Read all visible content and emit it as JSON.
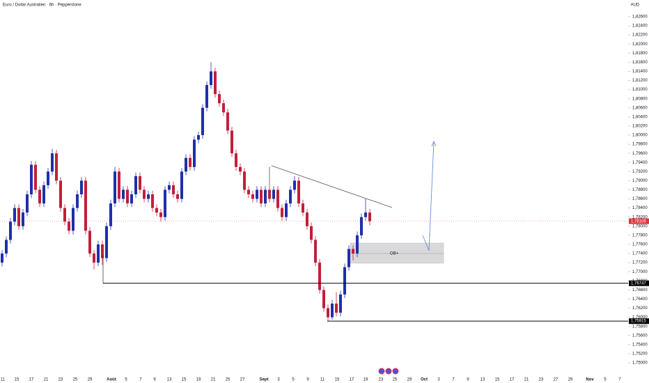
{
  "chart_data": {
    "type": "candlestick",
    "title": "Euro / Dollar Australien · 6h · Pepperstone",
    "currency": "AUD",
    "up_color": "#1f2fa8",
    "down_color": "#c21f3a",
    "ylim": [
      1.75,
      1.826
    ],
    "yticks": [
      {
        "value": 1.826,
        "label": "1,82600"
      },
      {
        "value": 1.824,
        "label": "1,82400"
      },
      {
        "value": 1.822,
        "label": "1,82200"
      },
      {
        "value": 1.82,
        "label": "1,82000"
      },
      {
        "value": 1.818,
        "label": "1,81800"
      },
      {
        "value": 1.816,
        "label": "1,81600"
      },
      {
        "value": 1.814,
        "label": "1,81400"
      },
      {
        "value": 1.812,
        "label": "1,81200"
      },
      {
        "value": 1.81,
        "label": "1,81000"
      },
      {
        "value": 1.808,
        "label": "1,80800"
      },
      {
        "value": 1.806,
        "label": "1,80600"
      },
      {
        "value": 1.804,
        "label": "1,80400"
      },
      {
        "value": 1.802,
        "label": "1,80200"
      },
      {
        "value": 1.8,
        "label": "1,80000"
      },
      {
        "value": 1.798,
        "label": "1,79800"
      },
      {
        "value": 1.796,
        "label": "1,79600"
      },
      {
        "value": 1.794,
        "label": "1,79400"
      },
      {
        "value": 1.792,
        "label": "1,79200"
      },
      {
        "value": 1.79,
        "label": "1,79000"
      },
      {
        "value": 1.788,
        "label": "1,78800"
      },
      {
        "value": 1.786,
        "label": "1,78600"
      },
      {
        "value": 1.784,
        "label": "1,78400"
      },
      {
        "value": 1.782,
        "label": "1,78200"
      },
      {
        "value": 1.78,
        "label": "1,78000"
      },
      {
        "value": 1.778,
        "label": "1,77800"
      },
      {
        "value": 1.776,
        "label": "1,77600"
      },
      {
        "value": 1.774,
        "label": "1,77400"
      },
      {
        "value": 1.772,
        "label": "1,77200"
      },
      {
        "value": 1.77,
        "label": "1,77000"
      },
      {
        "value": 1.768,
        "label": "1,76800"
      },
      {
        "value": 1.766,
        "label": "1,76600"
      },
      {
        "value": 1.764,
        "label": "1,76400"
      },
      {
        "value": 1.762,
        "label": "1,76200"
      },
      {
        "value": 1.76,
        "label": "1,76000"
      },
      {
        "value": 1.758,
        "label": "1,75800"
      },
      {
        "value": 1.756,
        "label": "1,75600"
      },
      {
        "value": 1.754,
        "label": "1,75400"
      },
      {
        "value": 1.752,
        "label": "1,75200"
      },
      {
        "value": 1.75,
        "label": "1,75000"
      }
    ],
    "x_labels": [
      "11",
      "15",
      "17",
      "21",
      "23",
      "25",
      "29",
      "Août",
      "5",
      "7",
      "9",
      "13",
      "15",
      "19",
      "21",
      "25",
      "27",
      "Sept",
      "3",
      "5",
      "9",
      "11",
      "15",
      "17",
      "19",
      "23",
      "25",
      "29",
      "Oct",
      "3",
      "7",
      "9",
      "13",
      "15",
      "17",
      "21",
      "23",
      "27",
      "29",
      "Nov",
      "5",
      "7"
    ],
    "candles": [
      [
        1.772,
        1.7748,
        1.7712,
        1.774
      ],
      [
        1.774,
        1.7778,
        1.7732,
        1.777
      ],
      [
        1.777,
        1.7818,
        1.7762,
        1.781
      ],
      [
        1.781,
        1.7848,
        1.7802,
        1.784
      ],
      [
        1.784,
        1.7848,
        1.7792,
        1.78
      ],
      [
        1.78,
        1.7838,
        1.7792,
        1.783
      ],
      [
        1.783,
        1.7878,
        1.7822,
        1.787
      ],
      [
        1.787,
        1.7943,
        1.7862,
        1.7935
      ],
      [
        1.7935,
        1.7943,
        1.7872,
        1.788
      ],
      [
        1.788,
        1.7888,
        1.7842,
        1.785
      ],
      [
        1.785,
        1.7898,
        1.7842,
        1.789
      ],
      [
        1.789,
        1.7928,
        1.7882,
        1.792
      ],
      [
        1.792,
        1.797,
        1.7912,
        1.796
      ],
      [
        1.796,
        1.7968,
        1.7892,
        1.79
      ],
      [
        1.79,
        1.7908,
        1.7832,
        1.784
      ],
      [
        1.784,
        1.7848,
        1.7802,
        1.781
      ],
      [
        1.781,
        1.7818,
        1.7782,
        1.779
      ],
      [
        1.779,
        1.7848,
        1.7782,
        1.784
      ],
      [
        1.784,
        1.7878,
        1.7832,
        1.787
      ],
      [
        1.787,
        1.7908,
        1.7862,
        1.79
      ],
      [
        1.79,
        1.7908,
        1.7782,
        1.779
      ],
      [
        1.779,
        1.7798,
        1.7732,
        1.774
      ],
      [
        1.774,
        1.7748,
        1.7705,
        1.772
      ],
      [
        1.772,
        1.7768,
        1.7712,
        1.776
      ],
      [
        1.776,
        1.7768,
        1.7715,
        1.773
      ],
      [
        1.773,
        1.7808,
        1.7722,
        1.78
      ],
      [
        1.78,
        1.7858,
        1.7792,
        1.785
      ],
      [
        1.785,
        1.793,
        1.7842,
        1.792
      ],
      [
        1.792,
        1.7928,
        1.7852,
        1.786
      ],
      [
        1.786,
        1.7888,
        1.7852,
        1.788
      ],
      [
        1.788,
        1.7888,
        1.7842,
        1.785
      ],
      [
        1.785,
        1.7878,
        1.7842,
        1.787
      ],
      [
        1.787,
        1.7918,
        1.7862,
        1.791
      ],
      [
        1.791,
        1.7918,
        1.7872,
        1.788
      ],
      [
        1.788,
        1.7888,
        1.7852,
        1.786
      ],
      [
        1.786,
        1.7878,
        1.7852,
        1.787
      ],
      [
        1.787,
        1.7878,
        1.7832,
        1.784
      ],
      [
        1.784,
        1.7848,
        1.7822,
        1.783
      ],
      [
        1.783,
        1.7838,
        1.781,
        1.782
      ],
      [
        1.782,
        1.7888,
        1.7812,
        1.788
      ],
      [
        1.788,
        1.7898,
        1.7872,
        1.789
      ],
      [
        1.789,
        1.7898,
        1.7862,
        1.787
      ],
      [
        1.787,
        1.7878,
        1.7852,
        1.786
      ],
      [
        1.786,
        1.7928,
        1.7852,
        1.792
      ],
      [
        1.792,
        1.7958,
        1.7912,
        1.795
      ],
      [
        1.795,
        1.7958,
        1.7922,
        1.793
      ],
      [
        1.793,
        1.7998,
        1.7922,
        1.799
      ],
      [
        1.799,
        1.8008,
        1.7982,
        1.8
      ],
      [
        1.8,
        1.8068,
        1.7992,
        1.806
      ],
      [
        1.806,
        1.8118,
        1.8052,
        1.811
      ],
      [
        1.811,
        1.816,
        1.8102,
        1.814
      ],
      [
        1.814,
        1.8148,
        1.8082,
        1.809
      ],
      [
        1.809,
        1.8098,
        1.8062,
        1.807
      ],
      [
        1.807,
        1.8078,
        1.8042,
        1.805
      ],
      [
        1.805,
        1.8058,
        1.8002,
        1.801
      ],
      [
        1.801,
        1.8018,
        1.7952,
        1.796
      ],
      [
        1.796,
        1.7968,
        1.7922,
        1.793
      ],
      [
        1.793,
        1.7938,
        1.7912,
        1.792
      ],
      [
        1.792,
        1.7928,
        1.7872,
        1.788
      ],
      [
        1.788,
        1.7888,
        1.7862,
        1.787
      ],
      [
        1.787,
        1.7878,
        1.7852,
        1.786
      ],
      [
        1.786,
        1.7888,
        1.7852,
        1.788
      ],
      [
        1.788,
        1.7888,
        1.7842,
        1.785
      ],
      [
        1.785,
        1.7888,
        1.7842,
        1.788
      ],
      [
        1.788,
        1.793,
        1.7852,
        1.786
      ],
      [
        1.786,
        1.7888,
        1.7852,
        1.788
      ],
      [
        1.788,
        1.7888,
        1.7832,
        1.784
      ],
      [
        1.784,
        1.7848,
        1.7812,
        1.782
      ],
      [
        1.782,
        1.7858,
        1.7812,
        1.785
      ],
      [
        1.785,
        1.7888,
        1.7842,
        1.788
      ],
      [
        1.788,
        1.791,
        1.7872,
        1.79
      ],
      [
        1.79,
        1.7908,
        1.7842,
        1.785
      ],
      [
        1.785,
        1.7858,
        1.7822,
        1.783
      ],
      [
        1.783,
        1.7838,
        1.7792,
        1.78
      ],
      [
        1.78,
        1.7808,
        1.7762,
        1.777
      ],
      [
        1.777,
        1.7778,
        1.7712,
        1.772
      ],
      [
        1.772,
        1.7728,
        1.7652,
        1.766
      ],
      [
        1.766,
        1.7668,
        1.7612,
        1.762
      ],
      [
        1.762,
        1.7628,
        1.7592,
        1.76
      ],
      [
        1.76,
        1.7638,
        1.7595,
        1.763
      ],
      [
        1.763,
        1.7655,
        1.7602,
        1.761
      ],
      [
        1.761,
        1.7658,
        1.7602,
        1.765
      ],
      [
        1.765,
        1.7718,
        1.7642,
        1.771
      ],
      [
        1.771,
        1.7758,
        1.7702,
        1.775
      ],
      [
        1.775,
        1.7758,
        1.7725,
        1.774
      ],
      [
        1.774,
        1.7788,
        1.7732,
        1.778
      ],
      [
        1.778,
        1.7828,
        1.7772,
        1.782
      ],
      [
        1.782,
        1.786,
        1.7812,
        1.783
      ],
      [
        1.783,
        1.7838,
        1.7802,
        1.7811
      ]
    ],
    "current_price": {
      "value": 1.78109,
      "label": "1,78109",
      "color": "#e0323c"
    },
    "levels": [
      {
        "value": 1.76747,
        "label": "1,76747"
      },
      {
        "value": 1.75915,
        "label": "1,75915"
      }
    ],
    "annotation": "OB+"
  }
}
